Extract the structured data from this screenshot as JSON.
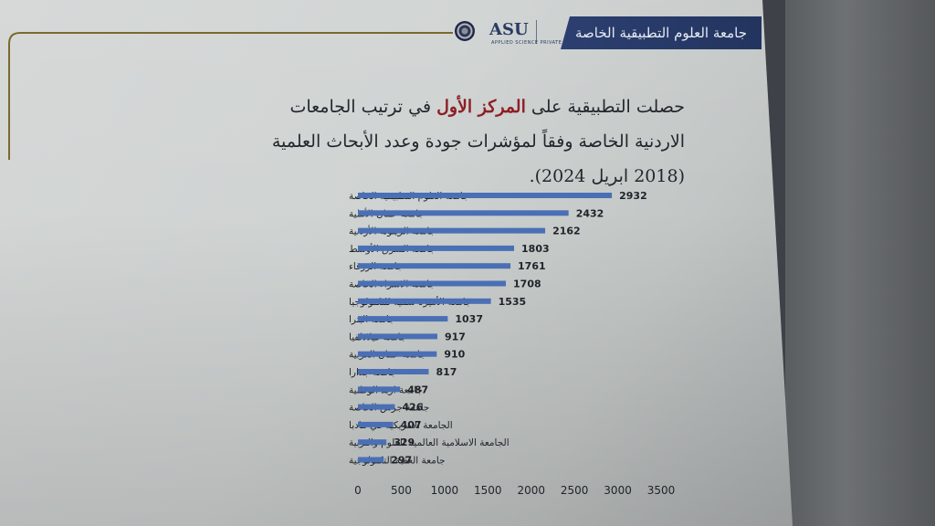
{
  "header": {
    "banner_text": "جامعة العلوم التطبيقية الخاصة",
    "logo_text": "ASU",
    "logo_sub": "APPLIED SCIENCE PRIVATE UNIVERSITY",
    "accent_color": "#2c3f70"
  },
  "heading": {
    "part1": "حصلت التطبيقية على ",
    "highlight": "المركز الأول",
    "part2": " في ترتيب الجامعات الاردنية الخاصة وفقاً لمؤشرات جودة وعدد الأبحاث العلمية (2018 ابريل 2024).",
    "highlight_color": "#8f1e25"
  },
  "chart_data": {
    "type": "bar",
    "orientation": "horizontal",
    "categories": [
      "جامعة العلوم التطبيقية الخاصة",
      "جامعة عمان الأهلية",
      "جامعة الزيتونة الأردنية",
      "جامعة الشرق الأوسط",
      "جامعة الزرقاء",
      "جامعة الاسراء الخاصة",
      "جامعة الأميرة سمية للتكنولوجيا",
      "جامعة البترا",
      "جامعة فيلادلفيا",
      "جامعة عمان العربية",
      "جامعة جدارا",
      "جامعة اربد الوطنية",
      "جامعة جرش الخاصة",
      "الجامعة الامريكية في مادبا",
      "الجامعة الاسلامية العالمية للعلوم والتربية",
      "جامعة العقبة التكنولوجية"
    ],
    "values": [
      2932,
      2432,
      2162,
      1803,
      1761,
      1708,
      1535,
      1037,
      917,
      910,
      817,
      487,
      426,
      407,
      329,
      297
    ],
    "xlim": [
      0,
      3500
    ],
    "x_ticks": [
      0,
      500,
      1000,
      1500,
      2000,
      2500,
      3000,
      3500
    ],
    "bar_color": "#4a6fb5",
    "grid": false,
    "legend": "none",
    "data_labels": true
  }
}
